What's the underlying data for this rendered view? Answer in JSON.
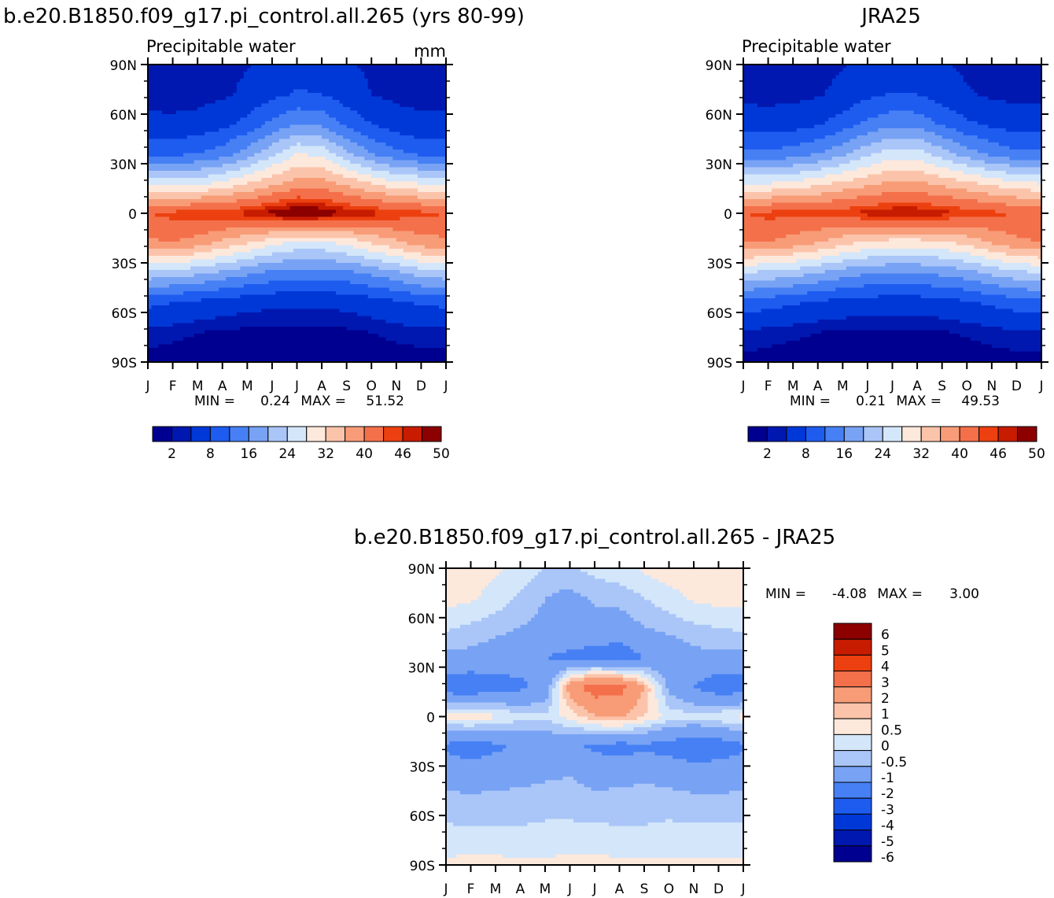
{
  "chart_data": [
    {
      "type": "heatmap",
      "title": "b.e20.B1850.f09_g17.pi_control.all.265 (yrs 80-99)",
      "subtitle": "Precipitable water",
      "units": "mm",
      "x_ticks": [
        "J",
        "F",
        "M",
        "A",
        "M",
        "J",
        "J",
        "A",
        "S",
        "O",
        "N",
        "D",
        "J"
      ],
      "y_ticks": [
        "90N",
        "60N",
        "30N",
        "0",
        "30S",
        "60S",
        "90S"
      ],
      "ylim": [
        -90,
        90
      ],
      "stats": {
        "min_label": "MIN =",
        "min": "0.24",
        "max_label": "MAX =",
        "max": "51.52"
      },
      "colorbar_ticks": [
        "2",
        "8",
        "16",
        "24",
        "32",
        "40",
        "46",
        "50"
      ],
      "colorbar_levels": [
        2,
        4,
        8,
        12,
        16,
        20,
        24,
        28,
        32,
        36,
        40,
        44,
        46,
        48,
        50
      ],
      "palette": [
        "#000090",
        "#0018b0",
        "#0038d8",
        "#1e5cf0",
        "#4680f4",
        "#78a2f4",
        "#aac6f8",
        "#d4e6fa",
        "#fde8dc",
        "#fbc4aa",
        "#f89c78",
        "#f4704a",
        "#ec4010",
        "#c81c00",
        "#8c0000"
      ],
      "grid": {
        "lat": [
          -90,
          -72,
          -54,
          -36,
          -18,
          0,
          18,
          36,
          54,
          72,
          90
        ],
        "month": [
          1,
          2,
          3,
          4,
          5,
          6,
          7,
          8,
          9,
          10,
          11,
          12,
          13
        ],
        "values": [
          [
            1.0,
            0.8,
            0.6,
            0.5,
            0.4,
            0.3,
            0.3,
            0.3,
            0.4,
            0.6,
            0.8,
            1.0,
            1.0
          ],
          [
            3.2,
            2.6,
            2.1,
            1.6,
            1.4,
            1.2,
            1.2,
            1.3,
            1.5,
            2.0,
            2.6,
            3.1,
            3.2
          ],
          [
            9.0,
            8.0,
            7.0,
            6.0,
            5.3,
            4.8,
            4.6,
            4.7,
            5.1,
            6.0,
            7.3,
            8.6,
            9.0
          ],
          [
            23,
            22,
            21,
            19,
            17,
            15,
            14,
            14,
            15,
            17,
            19,
            22,
            23
          ],
          [
            39,
            40,
            38,
            35,
            32,
            29,
            27,
            27,
            29,
            32,
            35,
            38,
            39
          ],
          [
            44,
            45,
            46,
            46,
            47,
            49,
            51,
            50,
            48,
            47,
            46,
            45,
            44
          ],
          [
            27,
            26,
            27,
            29,
            32,
            35,
            38,
            38,
            35,
            32,
            29,
            28,
            27
          ],
          [
            11,
            11,
            12,
            14,
            18,
            23,
            28,
            27,
            21,
            16,
            13,
            11,
            11
          ],
          [
            5.0,
            4.9,
            5.4,
            6.8,
            9.3,
            13,
            16,
            15,
            11,
            8.0,
            6.0,
            5.1,
            5.0
          ],
          [
            2.6,
            2.5,
            2.7,
            3.3,
            4.8,
            7.0,
            8.4,
            8.0,
            5.8,
            4.0,
            3.0,
            2.6,
            2.6
          ],
          [
            2.4,
            2.4,
            2.5,
            3.0,
            3.8,
            5.2,
            6.3,
            6.0,
            4.4,
            3.4,
            2.6,
            2.4,
            2.4
          ]
        ]
      }
    },
    {
      "type": "heatmap",
      "title": "JRA25",
      "subtitle": "Precipitable water",
      "x_ticks": [
        "J",
        "F",
        "M",
        "A",
        "M",
        "J",
        "J",
        "A",
        "S",
        "O",
        "N",
        "D",
        "J"
      ],
      "y_ticks": [
        "90N",
        "60N",
        "30N",
        "0",
        "30S",
        "60S",
        "90S"
      ],
      "ylim": [
        -90,
        90
      ],
      "stats": {
        "min_label": "MIN =",
        "min": "0.21",
        "max_label": "MAX =",
        "max": "49.53"
      },
      "colorbar_ticks": [
        "2",
        "8",
        "16",
        "24",
        "32",
        "40",
        "46",
        "50"
      ],
      "colorbar_levels": [
        2,
        4,
        8,
        12,
        16,
        20,
        24,
        28,
        32,
        36,
        40,
        44,
        46,
        48,
        50
      ],
      "palette": [
        "#000090",
        "#0018b0",
        "#0038d8",
        "#1e5cf0",
        "#4680f4",
        "#78a2f4",
        "#aac6f8",
        "#d4e6fa",
        "#fde8dc",
        "#fbc4aa",
        "#f89c78",
        "#f4704a",
        "#ec4010",
        "#c81c00",
        "#8c0000"
      ],
      "grid": {
        "lat": [
          -90,
          -72,
          -54,
          -36,
          -18,
          0,
          18,
          36,
          54,
          72,
          90
        ],
        "month": [
          1,
          2,
          3,
          4,
          5,
          6,
          7,
          8,
          9,
          10,
          11,
          12,
          13
        ],
        "values": [
          [
            1.2,
            1.0,
            0.8,
            0.6,
            0.5,
            0.4,
            0.4,
            0.4,
            0.5,
            0.7,
            0.9,
            1.1,
            1.2
          ],
          [
            3.6,
            3.0,
            2.5,
            2.0,
            1.7,
            1.5,
            1.5,
            1.6,
            1.8,
            2.3,
            2.9,
            3.5,
            3.6
          ],
          [
            10.5,
            9.5,
            8.5,
            7.3,
            6.5,
            6.0,
            5.8,
            5.9,
            6.4,
            7.3,
            8.7,
            10,
            10.5
          ],
          [
            24,
            23,
            22,
            20,
            18,
            16.5,
            16,
            16,
            17,
            18.5,
            21,
            23,
            24
          ],
          [
            40,
            40,
            38,
            36,
            33,
            31,
            30,
            30,
            31,
            33,
            36,
            39,
            40
          ],
          [
            44,
            45,
            45,
            45,
            46,
            47,
            48,
            48,
            47,
            46,
            45,
            44,
            44
          ],
          [
            28,
            28,
            29,
            31,
            33,
            35,
            37,
            37,
            35,
            33,
            31,
            29,
            28
          ],
          [
            13,
            13,
            14,
            16,
            19,
            23,
            26,
            26,
            22,
            18,
            15,
            13,
            13
          ],
          [
            6.0,
            5.8,
            6.2,
            7.6,
            10,
            13,
            15,
            14.5,
            11.5,
            8.8,
            7.0,
            6.0,
            6.0
          ],
          [
            3.0,
            2.8,
            3.0,
            3.6,
            5.0,
            7.0,
            8.2,
            8.0,
            6.0,
            4.3,
            3.4,
            3.0,
            3.0
          ],
          [
            2.6,
            2.5,
            2.6,
            3.0,
            3.8,
            5.0,
            6.0,
            5.7,
            4.4,
            3.4,
            2.8,
            2.6,
            2.6
          ]
        ]
      }
    },
    {
      "type": "heatmap",
      "title": "b.e20.B1850.f09_g17.pi_control.all.265 - JRA25",
      "x_ticks": [
        "J",
        "F",
        "M",
        "A",
        "M",
        "J",
        "J",
        "A",
        "S",
        "O",
        "N",
        "D",
        "J"
      ],
      "y_ticks": [
        "90N",
        "60N",
        "30N",
        "0",
        "30S",
        "60S",
        "90S"
      ],
      "ylim": [
        -90,
        90
      ],
      "stats": {
        "min_label": "MIN =",
        "min": "-4.08",
        "max_label": "MAX =",
        "max": "3.00"
      },
      "colorbar_ticks": [
        "6",
        "5",
        "4",
        "3",
        "2",
        "1",
        "0.5",
        "0",
        "-0.5",
        "-1",
        "-2",
        "-3",
        "-4",
        "-5",
        "-6"
      ],
      "colorbar_levels": [
        -6,
        -5,
        -4,
        -3,
        -2,
        -1,
        -0.5,
        0,
        0.5,
        1,
        2,
        3,
        4,
        5,
        6
      ],
      "palette": [
        "#000090",
        "#0018b0",
        "#0038d8",
        "#1e5cf0",
        "#4680f4",
        "#78a2f4",
        "#aac6f8",
        "#d4e6fa",
        "#fde8dc",
        "#fbc4aa",
        "#f89c78",
        "#f4704a",
        "#ec4010",
        "#c81c00",
        "#8c0000"
      ],
      "grid": {
        "lat": [
          -90,
          -72,
          -54,
          -36,
          -18,
          0,
          18,
          36,
          54,
          72,
          90
        ],
        "month": [
          1,
          2,
          3,
          4,
          5,
          6,
          7,
          8,
          9,
          10,
          11,
          12,
          13
        ],
        "values": [
          [
            0.1,
            0.2,
            0.2,
            0.1,
            0.1,
            0.2,
            0.2,
            0.1,
            0.1,
            0.1,
            0.1,
            0.1,
            0.1
          ],
          [
            -0.3,
            -0.4,
            -0.4,
            -0.4,
            -0.4,
            -0.3,
            -0.3,
            -0.4,
            -0.4,
            -0.3,
            -0.3,
            -0.3,
            -0.3
          ],
          [
            -0.8,
            -0.8,
            -0.7,
            -0.7,
            -0.6,
            -0.7,
            -0.8,
            -0.7,
            -0.7,
            -0.7,
            -0.8,
            -0.8,
            -0.8
          ],
          [
            -1.2,
            -1.3,
            -1.3,
            -1.2,
            -1.1,
            -1.0,
            -1.2,
            -1.2,
            -1.1,
            -1.2,
            -1.3,
            -1.3,
            -1.2
          ],
          [
            -2.2,
            -2.6,
            -2.2,
            -1.8,
            -1.6,
            -1.8,
            -2.2,
            -2.4,
            -2.2,
            -2.4,
            -2.8,
            -2.6,
            -2.2
          ],
          [
            0.2,
            0.4,
            0.1,
            -0.3,
            -0.4,
            0.2,
            0.9,
            1.1,
            0.5,
            -0.2,
            -0.3,
            -0.1,
            0.2
          ],
          [
            -2.6,
            -2.8,
            -2.4,
            -2.2,
            -1.6,
            1.4,
            2.6,
            2.4,
            1.0,
            -1.2,
            -2.0,
            -2.6,
            -2.6
          ],
          [
            -1.2,
            -1.2,
            -1.4,
            -1.6,
            -2.0,
            -2.2,
            -2.4,
            -2.6,
            -2.0,
            -1.6,
            -1.2,
            -1.2,
            -1.2
          ],
          [
            -0.4,
            -0.6,
            -0.8,
            -1.0,
            -1.2,
            -1.4,
            -1.3,
            -1.4,
            -1.0,
            -0.8,
            -0.6,
            -0.5,
            -0.4
          ],
          [
            0.2,
            0.1,
            -0.2,
            -0.6,
            -1.0,
            -1.2,
            -0.9,
            -0.8,
            -0.5,
            -0.2,
            0.1,
            0.2,
            0.2
          ],
          [
            0.1,
            0.2,
            0.1,
            -0.2,
            -0.5,
            -0.6,
            -0.3,
            -0.2,
            0.1,
            0.3,
            0.3,
            0.2,
            0.1
          ]
        ]
      }
    }
  ]
}
